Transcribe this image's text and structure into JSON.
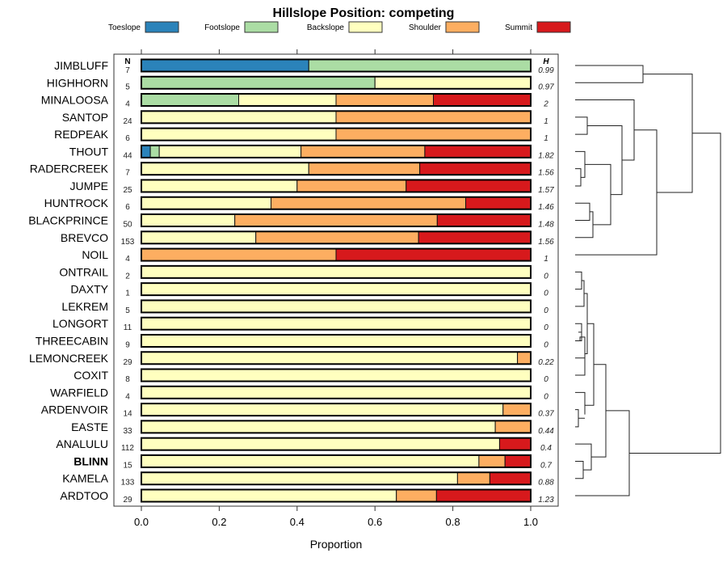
{
  "chart_data": {
    "type": "bar",
    "subtype": "stacked-horizontal-proportion",
    "title": "Hillslope Position: competing",
    "xlabel": "Proportion",
    "ylabel": "",
    "xlim": [
      0,
      1
    ],
    "xticks": [
      "0.0",
      "0.2",
      "0.4",
      "0.6",
      "0.8",
      "1.0"
    ],
    "xtick_values": [
      0,
      0.2,
      0.4,
      0.6,
      0.8,
      1.0
    ],
    "legend_position": "top",
    "n_header": "N",
    "h_header": "H",
    "series": [
      {
        "name": "Toeslope",
        "color": "#2b83ba"
      },
      {
        "name": "Footslope",
        "color": "#abdda4"
      },
      {
        "name": "Backslope",
        "color": "#ffffbf"
      },
      {
        "name": "Shoulder",
        "color": "#fdae61"
      },
      {
        "name": "Summit",
        "color": "#d7191c"
      }
    ],
    "rows": [
      {
        "label": "JIMBLUFF",
        "n": "7",
        "h": "0.99",
        "bold": false,
        "values": [
          0.43,
          0.57,
          0,
          0,
          0
        ]
      },
      {
        "label": "HIGHHORN",
        "n": "5",
        "h": "0.97",
        "bold": false,
        "values": [
          0,
          0.6,
          0.4,
          0,
          0
        ]
      },
      {
        "label": "MINALOOSA",
        "n": "4",
        "h": "2",
        "bold": false,
        "values": [
          0,
          0.25,
          0.25,
          0.25,
          0.25
        ]
      },
      {
        "label": "SANTOP",
        "n": "24",
        "h": "1",
        "bold": false,
        "values": [
          0,
          0,
          0.5,
          0.5,
          0
        ]
      },
      {
        "label": "REDPEAK",
        "n": "6",
        "h": "1",
        "bold": false,
        "values": [
          0,
          0,
          0.5,
          0.5,
          0
        ]
      },
      {
        "label": "THOUT",
        "n": "44",
        "h": "1.82",
        "bold": false,
        "values": [
          0.023,
          0.023,
          0.364,
          0.318,
          0.272
        ]
      },
      {
        "label": "RADERCREEK",
        "n": "7",
        "h": "1.56",
        "bold": false,
        "values": [
          0,
          0,
          0.43,
          0.285,
          0.285
        ]
      },
      {
        "label": "JUMPE",
        "n": "25",
        "h": "1.57",
        "bold": false,
        "values": [
          0,
          0,
          0.4,
          0.28,
          0.32
        ]
      },
      {
        "label": "HUNTROCK",
        "n": "6",
        "h": "1.46",
        "bold": false,
        "values": [
          0,
          0,
          0.333,
          0.5,
          0.167
        ]
      },
      {
        "label": "BLACKPRINCE",
        "n": "50",
        "h": "1.48",
        "bold": false,
        "values": [
          0,
          0,
          0.24,
          0.52,
          0.24
        ]
      },
      {
        "label": "BREVCO",
        "n": "153",
        "h": "1.56",
        "bold": false,
        "values": [
          0,
          0,
          0.294,
          0.418,
          0.288
        ]
      },
      {
        "label": "NOIL",
        "n": "4",
        "h": "1",
        "bold": false,
        "values": [
          0,
          0,
          0,
          0.5,
          0.5
        ]
      },
      {
        "label": "ONTRAIL",
        "n": "2",
        "h": "0",
        "bold": false,
        "values": [
          0,
          0,
          1,
          0,
          0
        ]
      },
      {
        "label": "DAXTY",
        "n": "1",
        "h": "0",
        "bold": false,
        "values": [
          0,
          0,
          1,
          0,
          0
        ]
      },
      {
        "label": "LEKREM",
        "n": "5",
        "h": "0",
        "bold": false,
        "values": [
          0,
          0,
          1,
          0,
          0
        ]
      },
      {
        "label": "LONGORT",
        "n": "11",
        "h": "0",
        "bold": false,
        "values": [
          0,
          0,
          1,
          0,
          0
        ]
      },
      {
        "label": "THREECABIN",
        "n": "9",
        "h": "0",
        "bold": false,
        "values": [
          0,
          0,
          1,
          0,
          0
        ]
      },
      {
        "label": "LEMONCREEK",
        "n": "29",
        "h": "0.22",
        "bold": false,
        "values": [
          0,
          0,
          0.966,
          0.034,
          0
        ]
      },
      {
        "label": "COXIT",
        "n": "8",
        "h": "0",
        "bold": false,
        "values": [
          0,
          0,
          1,
          0,
          0
        ]
      },
      {
        "label": "WARFIELD",
        "n": "4",
        "h": "0",
        "bold": false,
        "values": [
          0,
          0,
          1,
          0,
          0
        ]
      },
      {
        "label": "ARDENVOIR",
        "n": "14",
        "h": "0.37",
        "bold": false,
        "values": [
          0,
          0,
          0.929,
          0.071,
          0
        ]
      },
      {
        "label": "EASTE",
        "n": "33",
        "h": "0.44",
        "bold": false,
        "values": [
          0,
          0,
          0.909,
          0.091,
          0
        ]
      },
      {
        "label": "ANALULU",
        "n": "112",
        "h": "0.4",
        "bold": false,
        "values": [
          0,
          0,
          0.92,
          0,
          0.08
        ]
      },
      {
        "label": "BLINN",
        "n": "15",
        "h": "0.7",
        "bold": true,
        "values": [
          0,
          0,
          0.867,
          0.067,
          0.066
        ]
      },
      {
        "label": "KAMELA",
        "n": "133",
        "h": "0.88",
        "bold": false,
        "values": [
          0,
          0,
          0.812,
          0.083,
          0.105
        ]
      },
      {
        "label": "ARDTOO",
        "n": "29",
        "h": "1.23",
        "bold": false,
        "values": [
          0,
          0,
          0.655,
          0.103,
          0.242
        ]
      }
    ],
    "dendrogram": "hierarchical clustering of rows shown on right side"
  }
}
